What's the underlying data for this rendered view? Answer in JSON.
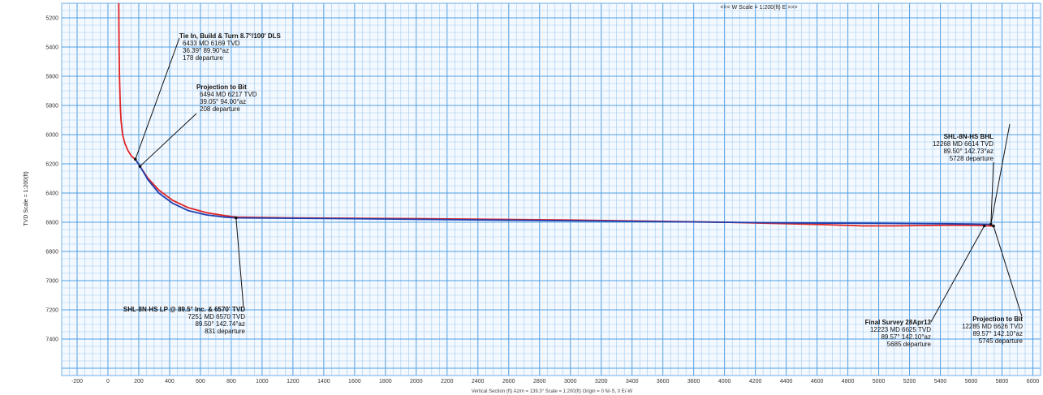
{
  "chart_data": {
    "type": "line",
    "title": "",
    "top_scale_label": "<<< W   Scale = 1:200(ft)   E >>>",
    "ylabel": "TVD Scale = 1:200(ft)",
    "xlabel": "Vertical Section (ft) Azim = 139.3° Scale = 1:200(ft)  Origin = 0 N/-S, 0 E/-W",
    "xlim": [
      -300,
      6050
    ],
    "ylim": [
      5100,
      7650
    ],
    "x_ticks": [
      -200,
      0,
      200,
      400,
      600,
      800,
      1000,
      1200,
      1400,
      1600,
      1800,
      2000,
      2200,
      2400,
      2600,
      2800,
      3000,
      3200,
      3400,
      3600,
      3800,
      4000,
      4200,
      4400,
      4600,
      4800,
      5000,
      5200,
      5400,
      5600,
      5800,
      6000
    ],
    "y_ticks": [
      5200,
      5400,
      5600,
      5800,
      6000,
      6200,
      6400,
      6600,
      6800,
      7000,
      7200,
      7400
    ],
    "grid": true,
    "series": [
      {
        "name": "",
        "color": "#e02424",
        "x": [
          70,
          72,
          75,
          80,
          85,
          95,
          110,
          130,
          155,
          178,
          208,
          260,
          330,
          420,
          520,
          640,
          760,
          831,
          1200,
          2000,
          3000,
          4000,
          4600,
          4900,
          5100,
          5300,
          5500,
          5650,
          5745
        ],
        "y": [
          5100,
          5400,
          5600,
          5800,
          5900,
          6000,
          6060,
          6110,
          6150,
          6169,
          6217,
          6300,
          6380,
          6450,
          6500,
          6535,
          6555,
          6565,
          6570,
          6575,
          6585,
          6600,
          6615,
          6625,
          6625,
          6622,
          6620,
          6622,
          6626
        ]
      },
      {
        "name": "",
        "color": "#1f3fb0",
        "x": [
          178,
          208,
          260,
          330,
          420,
          520,
          640,
          760,
          831,
          1500,
          2500,
          3500,
          4500,
          5000,
          5400,
          5600,
          5728
        ],
        "y": [
          6169,
          6217,
          6310,
          6400,
          6470,
          6520,
          6550,
          6565,
          6570,
          6575,
          6585,
          6595,
          6605,
          6608,
          6610,
          6612,
          6614
        ]
      }
    ],
    "annotations": [
      {
        "title": "Tie In, Build & Turn 8.7°/100' DLS",
        "lines": [
          "6433 MD  6169 TVD",
          "36.39°  89.90°az",
          "178 departure"
        ],
        "point": [
          178,
          6169
        ]
      },
      {
        "title": "Projection to Bit",
        "lines": [
          "6494 MD  6217 TVD",
          "39.05°  94.00°az",
          "208 departure"
        ],
        "point": [
          208,
          6217
        ]
      },
      {
        "title": "SHL-8N-HS LP @ 89.5° Inc. & 6570' TVD",
        "lines": [
          "7251 MD  6570 TVD",
          "89.50°  142.74°az",
          "831 departure"
        ],
        "point": [
          831,
          6570
        ]
      },
      {
        "title": "SHL-8N-HS BHL",
        "lines": [
          "12268 MD  6614 TVD",
          "89.50°  142.73°az",
          "5728 departure"
        ],
        "point": [
          5728,
          6614
        ]
      },
      {
        "title": "Final Survey 28Apr13",
        "lines": [
          "12223 MD  6625 TVD",
          "89.57°  142.10°az",
          "5685 departure"
        ],
        "point": [
          5685,
          6625
        ]
      },
      {
        "title": "Projection to Bit",
        "lines": [
          "12285 MD  6626 TVD",
          "89.57°  142.10°az",
          "5745 departure"
        ],
        "point": [
          5745,
          6626
        ]
      }
    ]
  }
}
